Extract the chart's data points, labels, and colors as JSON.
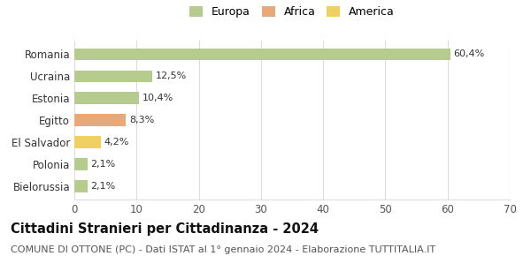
{
  "categories": [
    "Bielorussia",
    "Polonia",
    "El Salvador",
    "Egitto",
    "Estonia",
    "Ucraina",
    "Romania"
  ],
  "values": [
    2.1,
    2.1,
    4.2,
    8.3,
    10.4,
    12.5,
    60.4
  ],
  "labels": [
    "2,1%",
    "2,1%",
    "4,2%",
    "8,3%",
    "10,4%",
    "12,5%",
    "60,4%"
  ],
  "colors": [
    "#b5cc8e",
    "#b5cc8e",
    "#f0d060",
    "#e8a878",
    "#b5cc8e",
    "#b5cc8e",
    "#b5cc8e"
  ],
  "continents": [
    "Europa",
    "Europa",
    "America",
    "Africa",
    "Europa",
    "Europa",
    "Europa"
  ],
  "legend": [
    {
      "label": "Europa",
      "color": "#b5cc8e"
    },
    {
      "label": "Africa",
      "color": "#e8a878"
    },
    {
      "label": "America",
      "color": "#f0d060"
    }
  ],
  "xlim": [
    0,
    70
  ],
  "xticks": [
    0,
    10,
    20,
    30,
    40,
    50,
    60,
    70
  ],
  "title": "Cittadini Stranieri per Cittadinanza - 2024",
  "subtitle": "COMUNE DI OTTONE (PC) - Dati ISTAT al 1° gennaio 2024 - Elaborazione TUTTITALIA.IT",
  "title_fontsize": 10.5,
  "subtitle_fontsize": 8,
  "label_fontsize": 8,
  "tick_fontsize": 8.5,
  "bg_color": "#ffffff",
  "grid_color": "#dddddd"
}
